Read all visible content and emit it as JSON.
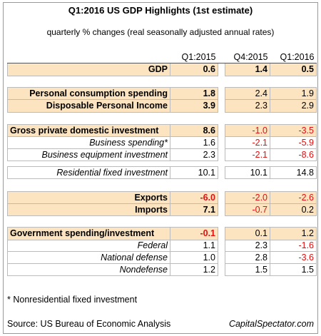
{
  "header": {
    "title": "Q1:2016 US GDP Highlights (1st estimate)",
    "subtitle": "quarterly % changes (real seasonally adjusted annual rates)"
  },
  "table": {
    "columns": [
      "Q1:2015",
      "Q4:2015",
      "Q1:2016"
    ],
    "rows": [
      [
        "GDP",
        "0.6",
        "1.4",
        "0.5"
      ],
      [
        "Personal consumption spending",
        "1.8",
        "2.4",
        "1.9"
      ],
      [
        "Disposable Personal Income",
        "3.9",
        "2.3",
        "2.9"
      ],
      [
        "Gross private domestic investment",
        "8.6",
        "-1.0",
        "-3.5"
      ],
      [
        "Business spending*",
        "1.6",
        "-2.1",
        "-5.9"
      ],
      [
        "Business equipment investment",
        "2.3",
        "-2.1",
        "-8.6"
      ],
      [
        "Residential fixed investment",
        "10.1",
        "10.1",
        "14.8"
      ],
      [
        "Exports",
        "-6.0",
        "-2.0",
        "-2.6"
      ],
      [
        "Imports",
        "7.1",
        "-0.7",
        "0.2"
      ],
      [
        "Government spending/investment",
        "-0.1",
        "0.1",
        "1.2"
      ],
      [
        "Federal",
        "1.1",
        "2.3",
        "-1.6"
      ],
      [
        "National defense",
        "1.0",
        "2.8",
        "-3.6"
      ],
      [
        "Nondefense",
        "1.2",
        "1.5",
        "1.5"
      ]
    ]
  },
  "footer": {
    "note": "* Nonresidential fixed investment",
    "source": "Source: US Bureau of Economic Analysis",
    "site": "CapitalSpectator.com"
  }
}
